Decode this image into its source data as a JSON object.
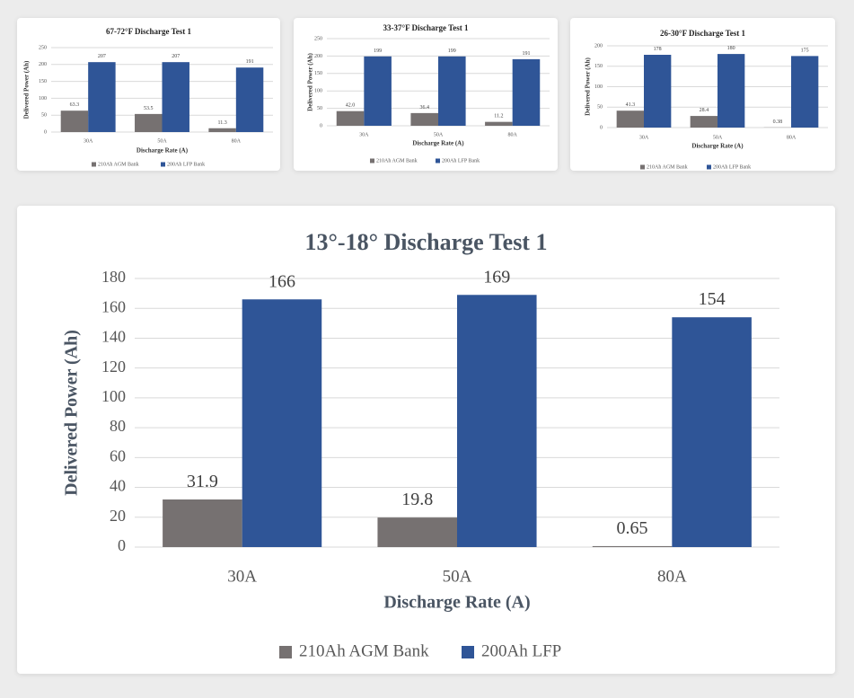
{
  "colors": {
    "agm": "#767171",
    "lfp": "#2f5597",
    "grid": "#d9d9d9",
    "axis_text": "#555555",
    "title": "#4a5563"
  },
  "chart_data": [
    {
      "type": "bar",
      "title": "67-72°F Discharge Test 1",
      "xlabel": "Discharge Rate (A)",
      "ylabel": "Delivered Power (Ah)",
      "ylim": [
        0,
        250
      ],
      "yticks": [
        "0",
        "50",
        "100",
        "150",
        "200",
        "250"
      ],
      "categories": [
        "30A",
        "50A",
        "80A"
      ],
      "legend_position": "bottom",
      "grid": true,
      "series": [
        {
          "name": "210Ah AGM Bank",
          "values": [
            63.3,
            53.5,
            11.3
          ],
          "labels": [
            "63.3",
            "53.5",
            "11.3"
          ]
        },
        {
          "name": "200Ah LFP Bank",
          "values": [
            207,
            207,
            191
          ],
          "labels": [
            "207",
            "207",
            "191"
          ]
        }
      ]
    },
    {
      "type": "bar",
      "title": "33-37°F Discharge Test 1",
      "xlabel": "Discharge Rate (A)",
      "ylabel": "Delivered Power (Ah)",
      "ylim": [
        0,
        250
      ],
      "yticks": [
        "0",
        "50",
        "100",
        "150",
        "200",
        "250"
      ],
      "categories": [
        "30A",
        "50A",
        "80A"
      ],
      "legend_position": "bottom",
      "grid": true,
      "series": [
        {
          "name": "210Ah AGM Bank",
          "values": [
            42.0,
            36.4,
            11.2
          ],
          "labels": [
            "42.0",
            "36.4",
            "11.2"
          ]
        },
        {
          "name": "200Ah LFP Bank",
          "values": [
            199,
            199,
            191
          ],
          "labels": [
            "199",
            "199",
            "191"
          ]
        }
      ]
    },
    {
      "type": "bar",
      "title": "26-30°F Discharge Test 1",
      "xlabel": "Discharge Rate (A)",
      "ylabel": "Delivered Power (Ah)",
      "ylim": [
        0,
        200
      ],
      "yticks": [
        "0",
        "50",
        "100",
        "150",
        "200"
      ],
      "categories": [
        "30A",
        "50A",
        "80A"
      ],
      "legend_position": "bottom",
      "grid": true,
      "series": [
        {
          "name": "210Ah AGM Bank",
          "values": [
            41.3,
            28.4,
            0.38
          ],
          "labels": [
            "41.3",
            "28.4",
            "0.38"
          ]
        },
        {
          "name": "200Ah LFP Bank",
          "values": [
            178,
            180,
            175
          ],
          "labels": [
            "178",
            "180",
            "175"
          ]
        }
      ]
    },
    {
      "type": "bar",
      "title": "13°-18° Discharge Test 1",
      "xlabel": "Discharge Rate (A)",
      "ylabel": "Delivered Power (Ah)",
      "ylim": [
        0,
        180
      ],
      "yticks": [
        "0",
        "20",
        "40",
        "60",
        "80",
        "100",
        "120",
        "140",
        "160",
        "180"
      ],
      "categories": [
        "30A",
        "50A",
        "80A"
      ],
      "legend_position": "bottom",
      "grid": true,
      "series": [
        {
          "name": "210Ah AGM Bank",
          "values": [
            31.9,
            19.8,
            0.65
          ],
          "labels": [
            "31.9",
            "19.8",
            "0.65"
          ]
        },
        {
          "name": "200Ah LFP",
          "values": [
            166,
            169,
            154
          ],
          "labels": [
            "166",
            "169",
            "154"
          ]
        }
      ]
    }
  ]
}
